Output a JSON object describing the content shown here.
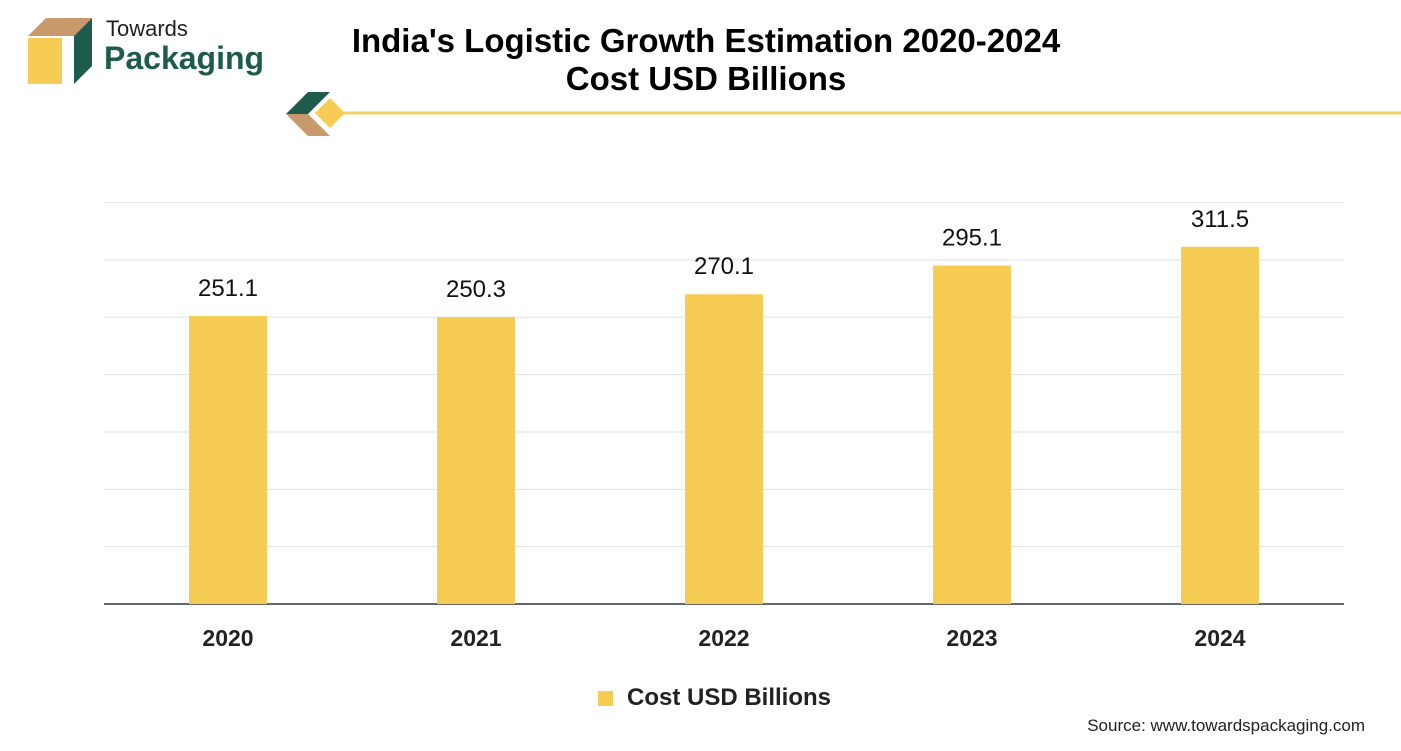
{
  "brand": {
    "line1": "Towards",
    "line2": "Packaging"
  },
  "header": {
    "title_line1": "India's Logistic Growth Estimation 2020-2024",
    "title_line2": "Cost USD Billions"
  },
  "colors": {
    "bar": "#f7cc55",
    "brand_green": "#1e5b4d",
    "brand_tan": "#c8996a",
    "divider": "#f2d268",
    "grid": "#e2e2e2",
    "axis": "#333333"
  },
  "chart_data": {
    "type": "bar",
    "categories": [
      "2020",
      "2021",
      "2022",
      "2023",
      "2024"
    ],
    "series": [
      {
        "name": "Cost USD Billions",
        "values": [
          251.1,
          250.3,
          270.1,
          295.1,
          311.5
        ]
      }
    ],
    "value_labels": [
      "251.1",
      "250.3",
      "270.1",
      "295.1",
      "311.5"
    ],
    "title": "India's Logistic Growth Estimation 2020-2024 Cost USD Billions",
    "xlabel": "",
    "ylabel": "",
    "ylim": [
      0,
      350
    ],
    "grid": true,
    "legend_position": "bottom"
  },
  "legend": {
    "label": "Cost USD Billions"
  },
  "footer": {
    "source": "Source: www.towardspackaging.com"
  }
}
